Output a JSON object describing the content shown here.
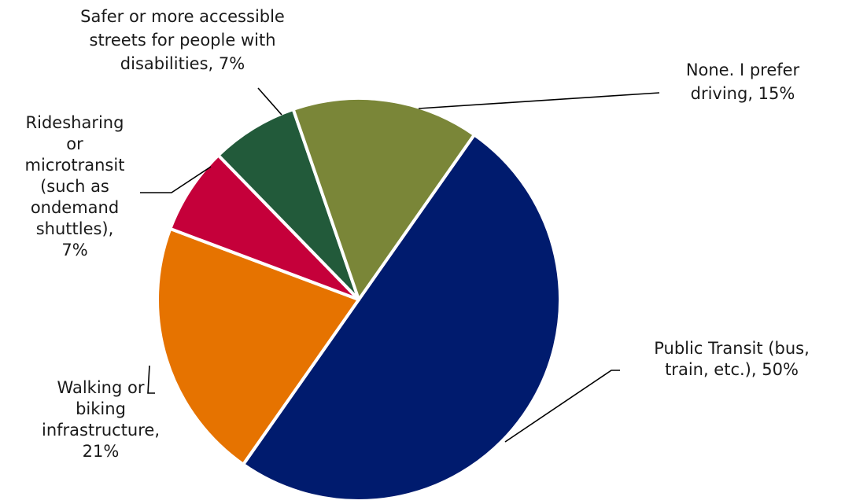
{
  "chart_data": {
    "type": "pie",
    "title": "",
    "start": "Public Transit (bus, train, etc.)",
    "direction": "clockwise",
    "slices": [
      {
        "name": "Public Transit (bus, train, etc.)",
        "value": 50,
        "value_label": "50%",
        "color": "#001B6E",
        "label_lines": [
          "Public Transit (bus,",
          "train, etc.), 50%"
        ]
      },
      {
        "name": "Walking or biking infrastructure",
        "value": 21,
        "value_label": "21%",
        "color": "#E67300",
        "label_lines": [
          "Walking or",
          "biking",
          "infrastructure,",
          "21%"
        ]
      },
      {
        "name": "Ridesharing or microtransit (such as ondemand shuttles)",
        "value": 7,
        "value_label": "7%",
        "color": "#C5003A",
        "label_lines": [
          "Ridesharing",
          "or",
          "microtransit",
          "(such as",
          "ondemand",
          "shuttles),",
          "7%"
        ]
      },
      {
        "name": "Safer or more accessible streets for people with disabilities",
        "value": 7,
        "value_label": "7%",
        "color": "#225A3A",
        "label_lines": [
          "Safer or more accessible",
          "streets for people with",
          "disabilities, 7%"
        ]
      },
      {
        "name": "None. I prefer driving",
        "value": 15,
        "value_label": "15%",
        "color": "#7A8638",
        "label_lines": [
          "None. I prefer",
          "driving, 15%"
        ]
      }
    ]
  }
}
